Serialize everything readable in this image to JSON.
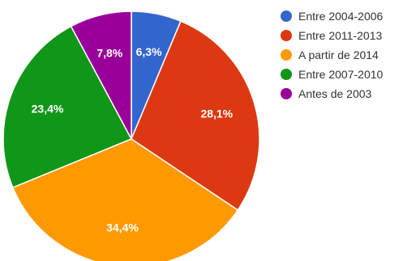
{
  "chart_data": {
    "type": "pie",
    "title": "",
    "legend_position": "right",
    "slices": [
      {
        "label": "Entre 2004-2006",
        "value": 6.3,
        "display": "6,3%",
        "color": "#3366cc"
      },
      {
        "label": "Entre 2011-2013",
        "value": 28.1,
        "display": "28,1%",
        "color": "#dc3912"
      },
      {
        "label": "A partir de 2014",
        "value": 34.4,
        "display": "34,4%",
        "color": "#ff9900"
      },
      {
        "label": "Entre 2007-2010",
        "value": 23.4,
        "display": "23,4%",
        "color": "#109618"
      },
      {
        "label": "Antes de 2003",
        "value": 7.8,
        "display": "7,8%",
        "color": "#990099"
      }
    ]
  }
}
